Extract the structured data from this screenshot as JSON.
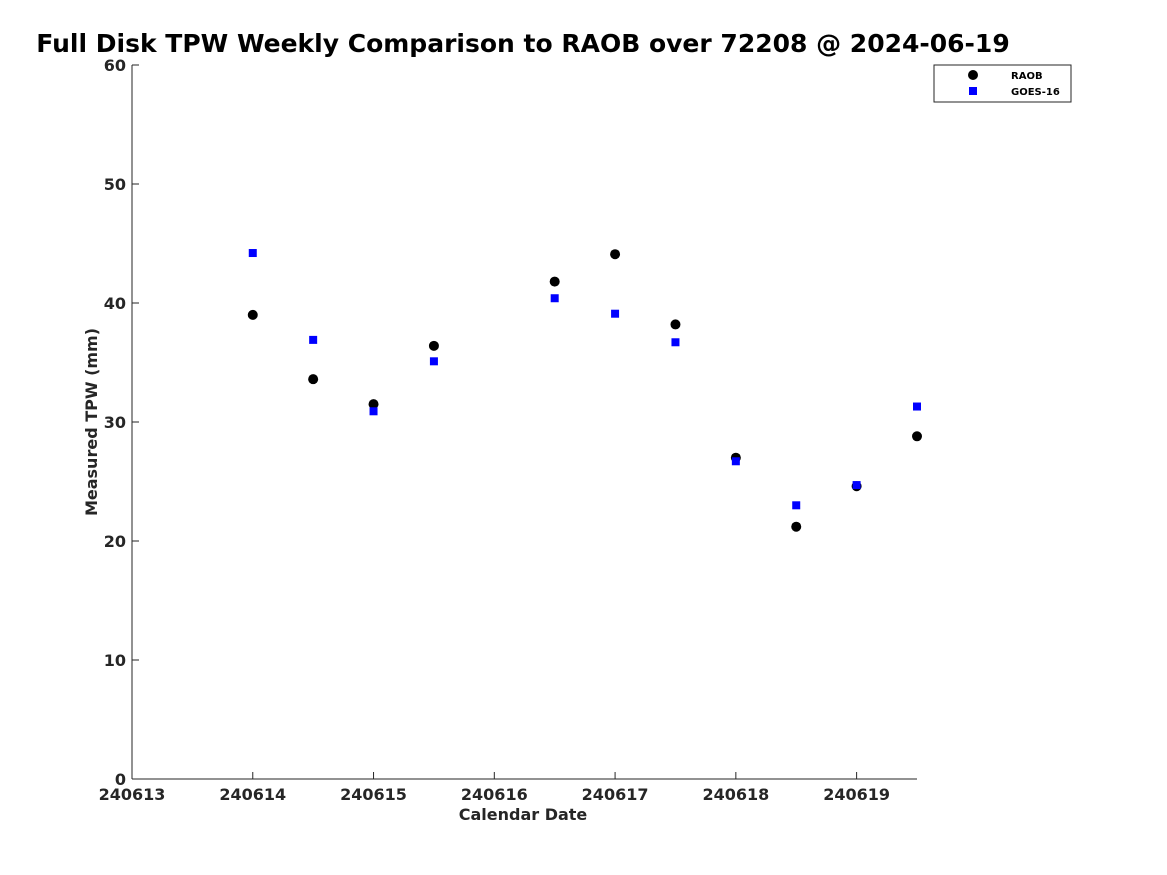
{
  "chart_data": {
    "type": "scatter",
    "title": "Full Disk TPW Weekly Comparison to RAOB over 72208 @ 2024-06-19",
    "xlabel": "Calendar Date",
    "ylabel": "Measured TPW (mm)",
    "xlim": [
      240613,
      240619.5
    ],
    "ylim": [
      0,
      60
    ],
    "x_ticks": [
      240613,
      240614,
      240615,
      240616,
      240617,
      240618,
      240619
    ],
    "x_tick_labels": [
      "240613",
      "240614",
      "240615",
      "240616",
      "240617",
      "240618",
      "240619"
    ],
    "y_ticks": [
      0,
      10,
      20,
      30,
      40,
      50,
      60
    ],
    "y_tick_labels": [
      "0",
      "10",
      "20",
      "30",
      "40",
      "50",
      "60"
    ],
    "grid": false,
    "legend_position": "top-right",
    "series": [
      {
        "name": "RAOB",
        "marker": "circle",
        "color": "#000000",
        "x": [
          240614,
          240614.5,
          240615,
          240615.5,
          240616.5,
          240617,
          240617.5,
          240618,
          240618.5,
          240619,
          240619.5
        ],
        "y": [
          39.0,
          33.6,
          31.5,
          36.4,
          41.8,
          44.1,
          38.2,
          27.0,
          21.2,
          24.6,
          28.8
        ]
      },
      {
        "name": "GOES-16",
        "marker": "square",
        "color": "#0000ff",
        "x": [
          240614,
          240614.5,
          240615,
          240615.5,
          240616.5,
          240617,
          240617.5,
          240618,
          240618.5,
          240619,
          240619.5
        ],
        "y": [
          44.2,
          36.9,
          30.9,
          35.1,
          40.4,
          39.1,
          36.7,
          26.7,
          23.0,
          24.7,
          31.3
        ]
      }
    ]
  }
}
